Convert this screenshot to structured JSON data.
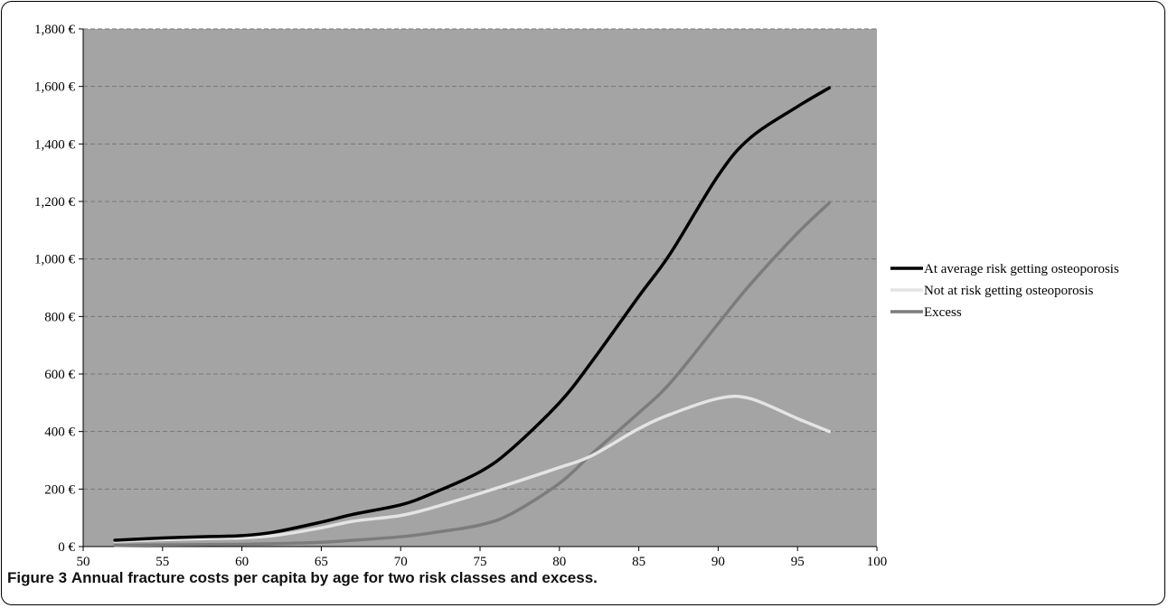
{
  "figure": {
    "label": "Figure 3",
    "caption": "Annual fracture costs per capita by age for two risk classes and excess."
  },
  "colors": {
    "plot_background": "#a4a4a4",
    "grid": "#777777",
    "series_average": "#000000",
    "series_not_at_risk": "#e4e4e4",
    "series_excess": "#7c7c7c"
  },
  "chart_data": {
    "type": "line",
    "title": "",
    "xlabel": "",
    "ylabel": "",
    "xlim": [
      50,
      100
    ],
    "ylim": [
      0,
      1800
    ],
    "x_ticks": [
      "50",
      "55",
      "60",
      "65",
      "70",
      "75",
      "80",
      "85",
      "90",
      "95",
      "100"
    ],
    "y_ticks": [
      "0 €",
      "200 €",
      "400 €",
      "600 €",
      "800 €",
      "1,000 €",
      "1,200 €",
      "1,400 €",
      "1,600 €",
      "1,800 €"
    ],
    "grid": "horizontal dashed",
    "legend_position": "right",
    "x": [
      52,
      55,
      58,
      60,
      62,
      65,
      67,
      70,
      72,
      75,
      77,
      80,
      82,
      85,
      87,
      90,
      92,
      95,
      97
    ],
    "series": [
      {
        "name": "At average risk getting osteoporosis",
        "values": [
          22,
          30,
          35,
          38,
          50,
          85,
          112,
          145,
          185,
          260,
          340,
          500,
          640,
          870,
          1020,
          1290,
          1420,
          1530,
          1595
        ]
      },
      {
        "name": "Not at risk getting osteoporosis",
        "values": [
          18,
          24,
          28,
          30,
          38,
          65,
          88,
          108,
          135,
          185,
          220,
          275,
          315,
          410,
          460,
          515,
          515,
          445,
          400
        ]
      },
      {
        "name": "Excess",
        "values": [
          4,
          6,
          7,
          8,
          10,
          15,
          22,
          34,
          48,
          75,
          115,
          220,
          320,
          465,
          570,
          775,
          910,
          1090,
          1195
        ]
      }
    ]
  }
}
